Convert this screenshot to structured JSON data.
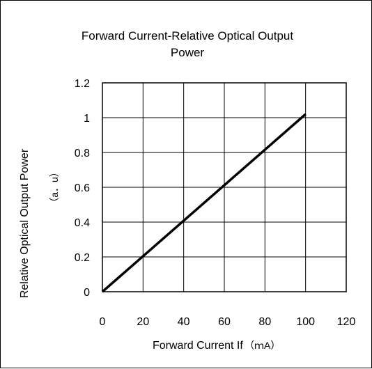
{
  "chart_data": {
    "type": "line",
    "title_lines": [
      "Forward Current-Relative Optical Output",
      "Power"
    ],
    "xlabel": "Forward Current If",
    "xunit": "（ｍA）",
    "ylabel": "Relative Optical Output Power",
    "yunit": "（a．u）",
    "xlim": [
      0,
      120
    ],
    "ylim": [
      0,
      1.2
    ],
    "x_ticks": [
      0,
      20,
      40,
      60,
      80,
      100,
      120
    ],
    "y_ticks": [
      0,
      0.2,
      0.4,
      0.6,
      0.8,
      1,
      1.2
    ],
    "x_tick_labels": [
      "0",
      "20",
      "40",
      "60",
      "80",
      "100",
      "120"
    ],
    "y_tick_labels": [
      "0",
      "0.2",
      "0.4",
      "0.6",
      "0.8",
      "1",
      "1.2"
    ],
    "grid": true,
    "series": [
      {
        "x": [
          0,
          100
        ],
        "y": [
          0,
          1.02
        ],
        "color": "#000000"
      }
    ]
  }
}
